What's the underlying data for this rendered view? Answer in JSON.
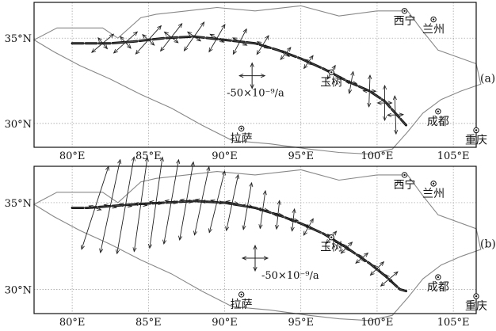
{
  "map": {
    "lon_ticks": [
      80,
      85,
      90,
      95,
      100,
      105
    ],
    "lat_ticks": [
      30,
      35
    ],
    "lon_range": [
      77.5,
      106.5
    ],
    "lat_range": [
      28.6,
      37.1
    ],
    "lon_tick_labels": [
      "80°E",
      "85°E",
      "90°E",
      "95°E",
      "100°E",
      "105°E"
    ],
    "lat_tick_labels": [
      "30°N",
      "35°N"
    ],
    "cities": [
      {
        "name": "西宁",
        "lon": 101.8,
        "lat": 36.6
      },
      {
        "name": "兰州",
        "lon": 103.7,
        "lat": 36.1
      },
      {
        "name": "玉树",
        "lon": 97.0,
        "lat": 33.0
      },
      {
        "name": "拉萨",
        "lon": 91.1,
        "lat": 29.7
      },
      {
        "name": "成都",
        "lon": 104.0,
        "lat": 30.7
      },
      {
        "name": "重庆",
        "lon": 106.5,
        "lat": 29.6
      }
    ],
    "boundary": [
      [
        77.5,
        34.9
      ],
      [
        78.8,
        34.2
      ],
      [
        80.5,
        33.4
      ],
      [
        82.5,
        32.6
      ],
      [
        84.5,
        31.7
      ],
      [
        86.5,
        30.9
      ],
      [
        88.5,
        29.9
      ],
      [
        90.5,
        29.0
      ],
      [
        93.0,
        28.8
      ],
      [
        95.5,
        28.5
      ],
      [
        97.5,
        28.3
      ],
      [
        99.5,
        28.2
      ],
      [
        101.0,
        28.5
      ],
      [
        102.0,
        29.5
      ],
      [
        103.0,
        30.6
      ],
      [
        104.2,
        31.4
      ],
      [
        105.5,
        31.9
      ],
      [
        106.8,
        32.3
      ],
      [
        106.5,
        33.5
      ],
      [
        104.0,
        34.3
      ],
      [
        103.0,
        35.4
      ],
      [
        102.0,
        36.6
      ],
      [
        100.0,
        36.6
      ],
      [
        97.5,
        36.3
      ],
      [
        95.0,
        36.9
      ],
      [
        92.0,
        36.6
      ],
      [
        89.5,
        36.8
      ],
      [
        87.5,
        36.6
      ],
      [
        85.5,
        36.4
      ],
      [
        84.5,
        36.2
      ],
      [
        83.0,
        35.0
      ],
      [
        82.0,
        35.6
      ],
      [
        80.5,
        35.6
      ],
      [
        79.0,
        35.6
      ]
    ]
  },
  "panels": [
    {
      "label": "(a)",
      "scale_label": "-50×10⁻⁹/a",
      "scale_bar": {
        "lon": 91.8,
        "lat": 32.8
      },
      "fault": [
        [
          80.0,
          34.7
        ],
        [
          81.0,
          34.7
        ],
        [
          82.5,
          34.7
        ],
        [
          84.0,
          34.8
        ],
        [
          86.0,
          35.0
        ],
        [
          88.0,
          35.1
        ],
        [
          90.0,
          34.9
        ],
        [
          92.0,
          34.7
        ],
        [
          93.5,
          34.3
        ],
        [
          95.0,
          33.8
        ],
        [
          96.5,
          33.2
        ],
        [
          98.0,
          32.5
        ],
        [
          99.5,
          31.9
        ],
        [
          100.5,
          31.3
        ],
        [
          101.5,
          30.3
        ],
        [
          101.9,
          29.9
        ]
      ],
      "crosses": [
        {
          "lon": 82.0,
          "lat": 34.7,
          "p1": 18,
          "p2": 9,
          "a1": 40
        },
        {
          "lon": 83.5,
          "lat": 34.75,
          "p1": 20,
          "p2": 10,
          "a1": 42
        },
        {
          "lon": 85.0,
          "lat": 34.9,
          "p1": 24,
          "p2": 10,
          "a1": 48
        },
        {
          "lon": 86.5,
          "lat": 35.05,
          "p1": 22,
          "p2": 11,
          "a1": 52
        },
        {
          "lon": 88.0,
          "lat": 35.1,
          "p1": 22,
          "p2": 10,
          "a1": 55
        },
        {
          "lon": 89.5,
          "lat": 35.0,
          "p1": 20,
          "p2": 10,
          "a1": 60
        },
        {
          "lon": 91.0,
          "lat": 34.8,
          "p1": 18,
          "p2": 10,
          "a1": 62
        },
        {
          "lon": 92.5,
          "lat": 34.6,
          "p1": 14,
          "p2": 8,
          "a1": 58
        },
        {
          "lon": 94.0,
          "lat": 34.1,
          "p1": 10,
          "p2": 6,
          "a1": 50
        },
        {
          "lon": 95.5,
          "lat": 33.6,
          "p1": 10,
          "p2": 6,
          "a1": 55
        },
        {
          "lon": 97.0,
          "lat": 33.0,
          "p1": 10,
          "p2": 6,
          "a1": 60
        },
        {
          "lon": 98.3,
          "lat": 32.4,
          "p1": 14,
          "p2": 7,
          "a1": 80
        },
        {
          "lon": 99.5,
          "lat": 31.9,
          "p1": 20,
          "p2": 8,
          "a1": 88
        },
        {
          "lon": 100.5,
          "lat": 31.2,
          "p1": 22,
          "p2": 9,
          "a1": 90
        },
        {
          "lon": 101.2,
          "lat": 30.5,
          "p1": 24,
          "p2": 10,
          "a1": 92
        }
      ]
    },
    {
      "label": "(b)",
      "scale_label": "-50×10⁻⁹/a",
      "scale_bar": {
        "lon": 92.0,
        "lat": 31.8
      },
      "fault": [
        [
          80.0,
          34.7
        ],
        [
          81.0,
          34.7
        ],
        [
          82.5,
          34.8
        ],
        [
          84.0,
          34.9
        ],
        [
          86.0,
          35.0
        ],
        [
          88.0,
          35.1
        ],
        [
          90.0,
          35.0
        ],
        [
          92.0,
          34.7
        ],
        [
          93.5,
          34.3
        ],
        [
          95.0,
          33.8
        ],
        [
          96.5,
          33.2
        ],
        [
          98.0,
          32.4
        ],
        [
          99.5,
          31.5
        ],
        [
          100.5,
          30.8
        ],
        [
          101.5,
          30.0
        ],
        [
          101.9,
          29.9
        ]
      ],
      "crosses": [
        {
          "lon": 81.5,
          "lat": 34.7,
          "p1": 55,
          "p2": 8,
          "a1": 72
        },
        {
          "lon": 82.5,
          "lat": 34.8,
          "p1": 60,
          "p2": 8,
          "a1": 78
        },
        {
          "lon": 83.5,
          "lat": 34.85,
          "p1": 62,
          "p2": 8,
          "a1": 80
        },
        {
          "lon": 84.5,
          "lat": 34.9,
          "p1": 60,
          "p2": 8,
          "a1": 82
        },
        {
          "lon": 85.5,
          "lat": 35.0,
          "p1": 58,
          "p2": 8,
          "a1": 82
        },
        {
          "lon": 86.5,
          "lat": 35.05,
          "p1": 54,
          "p2": 8,
          "a1": 80
        },
        {
          "lon": 87.5,
          "lat": 35.1,
          "p1": 50,
          "p2": 8,
          "a1": 80
        },
        {
          "lon": 88.5,
          "lat": 35.1,
          "p1": 44,
          "p2": 8,
          "a1": 78
        },
        {
          "lon": 89.5,
          "lat": 35.05,
          "p1": 40,
          "p2": 8,
          "a1": 76
        },
        {
          "lon": 90.5,
          "lat": 35.0,
          "p1": 36,
          "p2": 8,
          "a1": 78
        },
        {
          "lon": 91.5,
          "lat": 34.8,
          "p1": 30,
          "p2": 7,
          "a1": 80
        },
        {
          "lon": 92.5,
          "lat": 34.6,
          "p1": 24,
          "p2": 7,
          "a1": 82
        },
        {
          "lon": 93.5,
          "lat": 34.3,
          "p1": 18,
          "p2": 6,
          "a1": 84
        },
        {
          "lon": 94.5,
          "lat": 34.0,
          "p1": 14,
          "p2": 6,
          "a1": 84
        },
        {
          "lon": 95.5,
          "lat": 33.6,
          "p1": 12,
          "p2": 6,
          "a1": 60
        },
        {
          "lon": 97.0,
          "lat": 33.0,
          "p1": 10,
          "p2": 6,
          "a1": 50
        },
        {
          "lon": 98.0,
          "lat": 32.4,
          "p1": 10,
          "p2": 6,
          "a1": 45
        },
        {
          "lon": 99.0,
          "lat": 31.8,
          "p1": 10,
          "p2": 6,
          "a1": 40
        },
        {
          "lon": 100.0,
          "lat": 31.2,
          "p1": 12,
          "p2": 6,
          "a1": 45
        },
        {
          "lon": 100.8,
          "lat": 30.6,
          "p1": 14,
          "p2": 7,
          "a1": 40
        }
      ]
    }
  ]
}
